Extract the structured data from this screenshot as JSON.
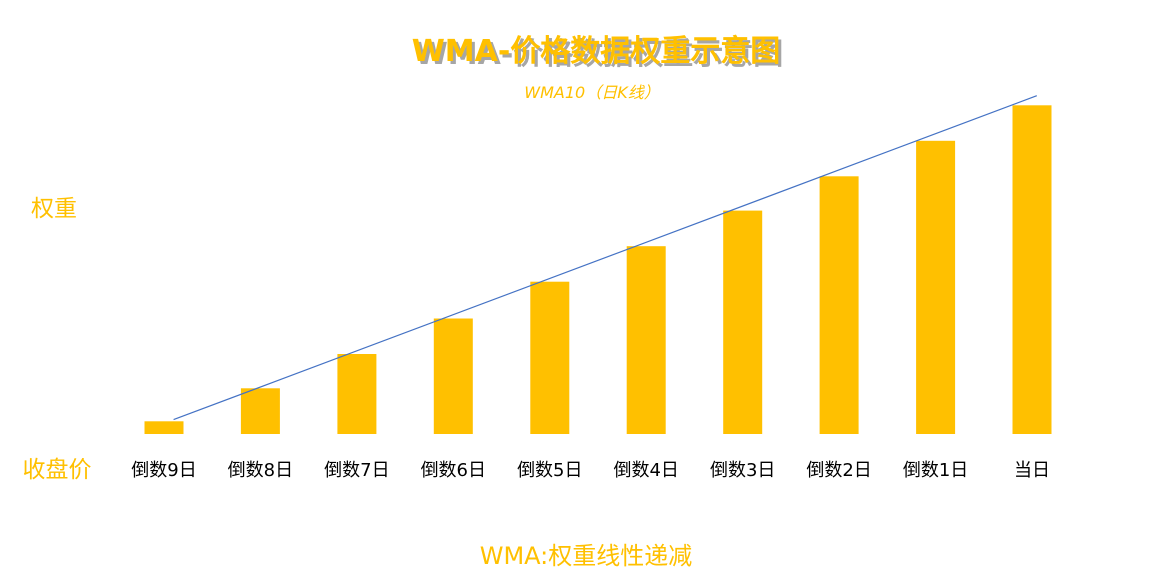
{
  "chart_data": {
    "type": "bar",
    "title": "WMA-价格数据权重示意图",
    "subtitle": "WMA10（日K线）",
    "ylabel": "权重",
    "xlabel": "收盘价",
    "footer": "WMA:权重线性递减",
    "categories": [
      "倒数9日",
      "倒数8日",
      "倒数7日",
      "倒数6日",
      "倒数5日",
      "倒数4日",
      "倒数3日",
      "倒数2日",
      "倒数1日",
      "当日"
    ],
    "values": [
      1,
      3.6,
      6.3,
      9.1,
      12,
      14.8,
      17.6,
      20.3,
      23.1,
      25.9
    ],
    "ylim": [
      0,
      26
    ],
    "trendline": true,
    "grid": false,
    "legend": "none"
  },
  "colors": {
    "bar": "#FFC000",
    "trendline": "#4472C4",
    "title": "#FFC000",
    "title_shadow": "#A6A6A6",
    "subtitle": "#FFC000",
    "side_label": "#FFC000",
    "tick_label": "#000000",
    "footer": "#FFC000"
  }
}
